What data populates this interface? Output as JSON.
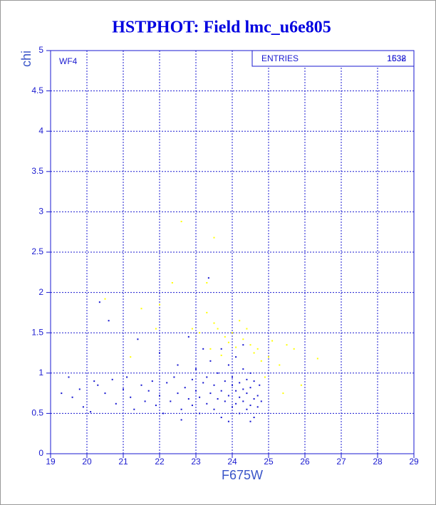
{
  "chart_data": {
    "type": "scatter",
    "title": "HSTPHOT: Field lmc_u6e805",
    "x_label": "F675W",
    "y_label": "chi",
    "annotation": "WF4",
    "stats_label": "ENTRIES",
    "stats_values": [
      1632,
      1538
    ],
    "xlim": [
      19,
      29
    ],
    "ylim": [
      0,
      5
    ],
    "xticks": [
      19,
      20,
      21,
      22,
      23,
      24,
      25,
      26,
      27,
      28,
      29
    ],
    "yticks": [
      0,
      0.5,
      1,
      1.5,
      2,
      2.5,
      3,
      3.5,
      4,
      4.5,
      5
    ],
    "grid": true,
    "series": [
      {
        "color": "#ffff00",
        "x": [
          22.6,
          23.5,
          23.3,
          22.35,
          20.5,
          21.5,
          22.0,
          23.3,
          23.5,
          23.6,
          23.8,
          23.9,
          24.0,
          24.2,
          24.3,
          24.4,
          24.5,
          24.6,
          24.7,
          24.8,
          25.0,
          25.3,
          25.5,
          25.7,
          26.35,
          25.9,
          25.4,
          24.9,
          23.4,
          23.1,
          24.1,
          23.7,
          21.2,
          21.9,
          22.9,
          25.1
        ],
        "y": [
          2.88,
          2.68,
          2.12,
          2.12,
          1.92,
          1.8,
          1.85,
          1.75,
          1.62,
          1.55,
          1.45,
          1.38,
          1.5,
          1.65,
          1.42,
          1.55,
          1.35,
          1.25,
          1.3,
          1.15,
          1.2,
          1.1,
          1.35,
          1.3,
          1.18,
          0.85,
          0.75,
          0.95,
          1.3,
          1.5,
          1.32,
          1.22,
          1.2,
          1.55,
          1.55,
          1.4
        ]
      },
      {
        "color": "#1515d0",
        "x": [
          19.3,
          19.5,
          19.6,
          19.8,
          19.9,
          20.1,
          20.2,
          20.3,
          20.35,
          20.6,
          20.5,
          20.7,
          20.8,
          21.0,
          21.1,
          21.2,
          21.3,
          21.4,
          21.5,
          21.6,
          21.7,
          21.8,
          21.9,
          22.0,
          22.0,
          22.1,
          22.2,
          22.3,
          22.4,
          22.5,
          22.5,
          22.6,
          22.7,
          22.8,
          22.8,
          22.9,
          22.9,
          23.0,
          23.0,
          23.1,
          23.1,
          23.2,
          23.2,
          23.3,
          23.3,
          23.35,
          23.4,
          23.4,
          23.5,
          23.5,
          23.6,
          23.6,
          23.7,
          23.7,
          23.8,
          23.8,
          23.9,
          23.9,
          24.0,
          24.0,
          24.0,
          24.1,
          24.1,
          24.1,
          24.2,
          24.2,
          24.2,
          24.3,
          24.3,
          24.3,
          24.4,
          24.4,
          24.4,
          24.5,
          24.5,
          24.5,
          24.6,
          24.6,
          24.6,
          24.7,
          24.7,
          24.75,
          23.7,
          24.3,
          22.6,
          23.9,
          24.5,
          24.8
        ],
        "y": [
          0.75,
          0.95,
          0.7,
          0.8,
          0.58,
          0.52,
          0.9,
          0.85,
          1.88,
          1.65,
          0.75,
          0.92,
          0.62,
          0.8,
          0.95,
          0.7,
          0.55,
          1.42,
          0.85,
          0.65,
          0.78,
          0.9,
          0.6,
          1.25,
          0.72,
          0.5,
          0.88,
          0.65,
          0.95,
          0.75,
          1.1,
          0.55,
          0.82,
          0.68,
          1.45,
          0.92,
          0.6,
          0.78,
          1.05,
          0.5,
          0.7,
          0.88,
          1.3,
          0.62,
          0.95,
          2.18,
          0.75,
          1.15,
          0.55,
          0.85,
          0.68,
          1.0,
          0.78,
          0.45,
          0.9,
          0.65,
          1.1,
          0.72,
          0.58,
          0.85,
          0.95,
          0.62,
          0.78,
          1.2,
          0.5,
          0.7,
          0.88,
          0.65,
          0.8,
          1.05,
          0.55,
          0.75,
          0.92,
          0.6,
          0.82,
          1.0,
          0.68,
          0.9,
          0.45,
          0.72,
          0.58,
          0.85,
          1.3,
          1.35,
          0.42,
          0.4,
          0.4,
          0.65
        ]
      }
    ]
  }
}
